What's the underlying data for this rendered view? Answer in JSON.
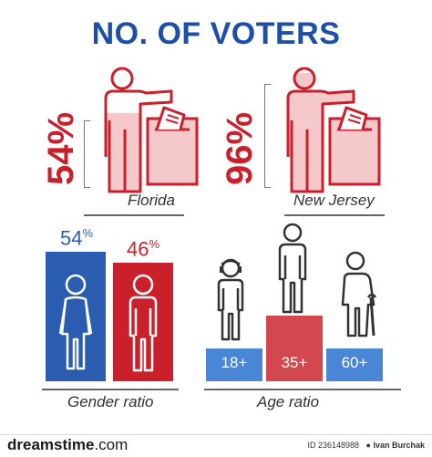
{
  "title": "NO. OF VOTERS",
  "colors": {
    "blue": "#2a5db0",
    "red": "#c9202b",
    "age_blue": "#4a86d6",
    "age_red": "#d3474f",
    "light_red": "#f5c9cc"
  },
  "chart_data": [
    {
      "type": "bar",
      "subtitle": "",
      "categories": [
        "Florida",
        "New Jersey"
      ],
      "values": [
        54,
        96
      ],
      "value_labels": [
        "54%",
        "96%"
      ],
      "ylim": [
        0,
        100
      ]
    },
    {
      "type": "bar",
      "caption": "Gender ratio",
      "categories": [
        "female",
        "male"
      ],
      "values": [
        54,
        46
      ],
      "value_labels": [
        "54",
        "46"
      ],
      "unit": "%"
    },
    {
      "type": "bar",
      "caption": "Age ratio",
      "categories": [
        "18+",
        "35+",
        "60+"
      ],
      "relative_heights": [
        1,
        2,
        1
      ]
    }
  ],
  "watermark": {
    "brand": "dreamstime",
    "suffix": ".com",
    "id_text": "ID 236148988",
    "author": "Ivan Burchak"
  }
}
